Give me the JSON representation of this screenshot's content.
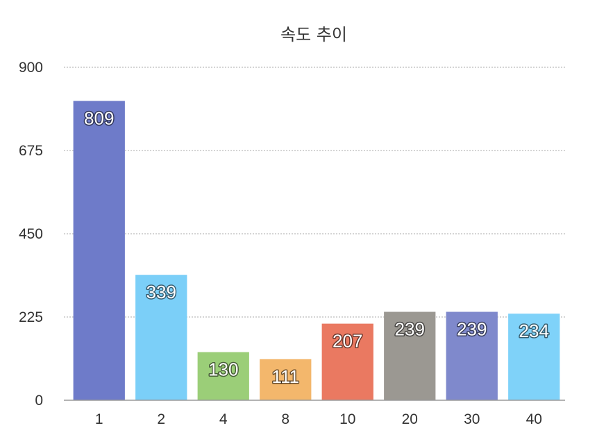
{
  "chart_data": {
    "type": "bar",
    "title": "속도 추이",
    "xlabel": "",
    "ylabel": "",
    "categories": [
      "1",
      "2",
      "4",
      "8",
      "10",
      "20",
      "30",
      "40"
    ],
    "values": [
      809,
      339,
      130,
      111,
      207,
      239,
      239,
      234
    ],
    "data_labels": [
      "809",
      "339",
      "130",
      "111",
      "207",
      "239",
      "239",
      "234"
    ],
    "ylim": [
      0,
      900
    ],
    "yticks": [
      0,
      225,
      450,
      675,
      900
    ],
    "ytick_labels": [
      "0",
      "225",
      "450",
      "675",
      "900"
    ],
    "grid": true,
    "bar_colors": [
      "#6e7bc9",
      "#7bcff8",
      "#9bce78",
      "#f3b76c",
      "#ea7961",
      "#9b9892",
      "#7f89cc",
      "#7fd2f9"
    ]
  }
}
